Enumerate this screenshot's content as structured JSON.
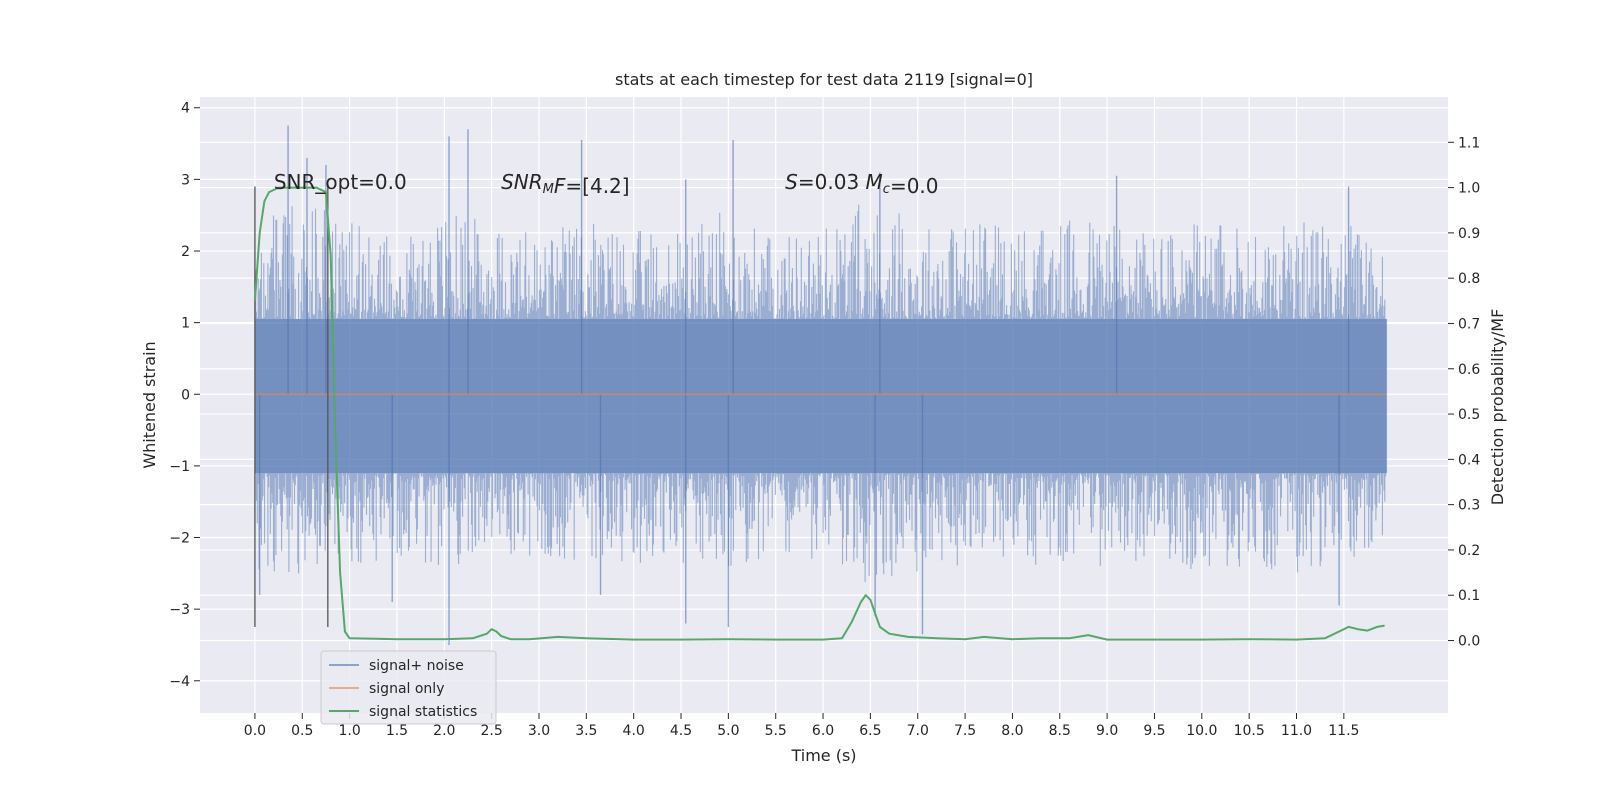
{
  "chart_data": {
    "type": "line",
    "title": "stats at each timestep for test data 2119 [signal=0]",
    "xlabel": "Time (s)",
    "ylabel": "Whitened strain",
    "y2label": "Detection probability/MF",
    "xlim": [
      -0.58,
      12.6
    ],
    "ylim": [
      -4.45,
      4.15
    ],
    "y2lim": [
      -0.16,
      1.2
    ],
    "x_ticks": [
      0.0,
      0.5,
      1.0,
      1.5,
      2.0,
      2.5,
      3.0,
      3.5,
      4.0,
      4.5,
      5.0,
      5.5,
      6.0,
      6.5,
      7.0,
      7.5,
      8.0,
      8.5,
      9.0,
      9.5,
      10.0,
      10.5,
      11.0,
      11.5
    ],
    "x_tick_labels": [
      "0.0",
      "0.5",
      "1.0",
      "1.5",
      "2.0",
      "2.5",
      "3.0",
      "3.5",
      "4.0",
      "4.5",
      "5.0",
      "5.5",
      "6.0",
      "6.5",
      "7.0",
      "7.5",
      "8.0",
      "8.5",
      "9.0",
      "9.5",
      "10.0",
      "10.5",
      "11.0",
      "11.5"
    ],
    "y_ticks": [
      -4,
      -3,
      -2,
      -1,
      0,
      1,
      2,
      3,
      4
    ],
    "y_tick_labels": [
      "−4",
      "−3",
      "−2",
      "−1",
      "0",
      "1",
      "2",
      "3",
      "4"
    ],
    "y2_ticks": [
      0.0,
      0.1,
      0.2,
      0.3,
      0.4,
      0.5,
      0.6,
      0.7,
      0.8,
      0.9,
      1.0,
      1.1
    ],
    "y2_tick_labels": [
      "0.0",
      "0.1",
      "0.2",
      "0.3",
      "0.4",
      "0.5",
      "0.6",
      "0.7",
      "0.8",
      "0.9",
      "1.0",
      "1.1"
    ],
    "grid": true,
    "legend_position": "lower-left",
    "series": [
      {
        "name": "signal+ noise",
        "axis": "left",
        "color": "#4c72b0",
        "opacity": 0.5,
        "envelope_x": [
          0,
          0.5,
          1,
          1.5,
          2,
          2.5,
          3,
          3.5,
          4,
          4.5,
          5,
          5.5,
          6,
          6.5,
          7,
          7.5,
          8,
          8.5,
          9,
          9.5,
          10,
          10.5,
          11,
          11.5,
          11.95
        ],
        "envelope_upper": [
          2.3,
          2.8,
          2.4,
          2.4,
          2.6,
          2.4,
          2.3,
          2.5,
          2.3,
          2.3,
          2.6,
          2.2,
          2.4,
          2.8,
          2.4,
          2.5,
          2.4,
          2.4,
          2.6,
          2.3,
          2.4,
          2.4,
          2.4,
          2.4,
          2.2
        ],
        "envelope_lower": [
          -2.5,
          -2.5,
          -2.4,
          -2.4,
          -2.5,
          -2.3,
          -2.3,
          -2.4,
          -2.4,
          -2.5,
          -2.4,
          -2.3,
          -2.4,
          -2.7,
          -2.5,
          -2.4,
          -2.4,
          -2.4,
          -2.4,
          -2.3,
          -2.5,
          -2.4,
          -2.5,
          -2.4,
          -2.2
        ],
        "peaks": [
          {
            "x": 0.35,
            "y": 3.75
          },
          {
            "x": 0.55,
            "y": 3.3
          },
          {
            "x": 0.75,
            "y": 3.2
          },
          {
            "x": 2.05,
            "y": 3.6
          },
          {
            "x": 2.25,
            "y": 3.7
          },
          {
            "x": 3.45,
            "y": 3.55
          },
          {
            "x": 5.05,
            "y": 3.55
          },
          {
            "x": 4.55,
            "y": 3.0
          },
          {
            "x": 6.6,
            "y": 3.1
          },
          {
            "x": 9.1,
            "y": 3.05
          },
          {
            "x": 11.55,
            "y": 2.9
          },
          {
            "x": 0.05,
            "y": -2.8
          },
          {
            "x": 2.05,
            "y": -3.5
          },
          {
            "x": 4.55,
            "y": -3.2
          },
          {
            "x": 5.0,
            "y": -3.25
          },
          {
            "x": 6.55,
            "y": -3.1
          },
          {
            "x": 7.05,
            "y": -3.35
          },
          {
            "x": 11.45,
            "y": -2.95
          },
          {
            "x": 1.45,
            "y": -2.9
          },
          {
            "x": 3.65,
            "y": -2.8
          }
        ]
      },
      {
        "name": "signal only",
        "axis": "left",
        "color": "#dd8452",
        "x": [
          0,
          11.95
        ],
        "y": [
          0,
          0
        ]
      },
      {
        "name": "signal statistics",
        "axis": "right",
        "color": "#55a868",
        "x": [
          0,
          0.05,
          0.1,
          0.15,
          0.25,
          0.4,
          0.55,
          0.65,
          0.7,
          0.75,
          0.8,
          0.85,
          0.9,
          0.95,
          1.0,
          1.5,
          2.0,
          2.3,
          2.45,
          2.5,
          2.55,
          2.6,
          2.7,
          2.9,
          3.2,
          3.5,
          4.0,
          4.5,
          5.0,
          5.5,
          6.0,
          6.2,
          6.3,
          6.4,
          6.45,
          6.5,
          6.55,
          6.6,
          6.7,
          6.9,
          7.2,
          7.5,
          7.7,
          8.0,
          8.3,
          8.6,
          8.8,
          9.0,
          9.5,
          10.0,
          10.5,
          11.0,
          11.3,
          11.45,
          11.55,
          11.65,
          11.75,
          11.85,
          11.93
        ],
        "y": [
          0.75,
          0.9,
          0.97,
          0.99,
          1.0,
          1.0,
          1.0,
          1.0,
          0.995,
          0.99,
          0.85,
          0.45,
          0.15,
          0.02,
          0.005,
          0.003,
          0.003,
          0.005,
          0.015,
          0.025,
          0.02,
          0.01,
          0.003,
          0.003,
          0.008,
          0.005,
          0.002,
          0.002,
          0.003,
          0.002,
          0.002,
          0.005,
          0.04,
          0.085,
          0.1,
          0.09,
          0.06,
          0.03,
          0.015,
          0.008,
          0.005,
          0.003,
          0.008,
          0.003,
          0.005,
          0.005,
          0.012,
          0.002,
          0.002,
          0.002,
          0.003,
          0.002,
          0.005,
          0.02,
          0.03,
          0.025,
          0.022,
          0.03,
          0.033
        ]
      }
    ],
    "vertical_lines": [
      0.0,
      0.77
    ],
    "vertical_line_range": [
      -3.25,
      2.9
    ],
    "annotations": [
      {
        "x": 0.2,
        "y": 2.95,
        "text": "SNR_opt=0.0",
        "style": "normal"
      },
      {
        "x": 2.6,
        "y": 2.95,
        "parts": [
          {
            "t": "SNR",
            "i": true
          },
          {
            "t": "M",
            "i": true,
            "sub": true
          },
          {
            "t": "F",
            "i": true
          },
          {
            "t": "=[4.2]",
            "i": false
          }
        ]
      },
      {
        "x": 5.6,
        "y": 2.95,
        "parts": [
          {
            "t": "S",
            "i": true
          },
          {
            "t": "=0.03   ",
            "i": false
          },
          {
            "t": "M",
            "i": true
          },
          {
            "t": "c",
            "i": true,
            "sub": true
          },
          {
            "t": "=0.0",
            "i": false
          }
        ]
      }
    ]
  }
}
